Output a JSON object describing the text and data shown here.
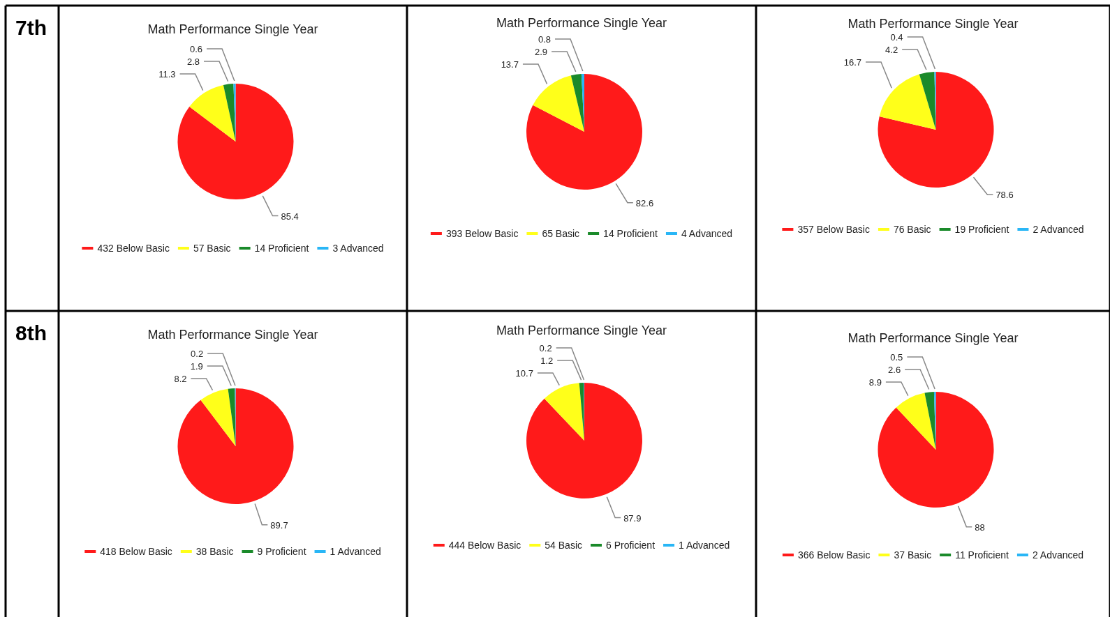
{
  "chart_data": [
    {
      "type": "pie",
      "title": "Math Performance Single Year",
      "annotations": [
        "7th"
      ],
      "categories": [
        "432 Below Basic",
        "57 Basic",
        "14 Proficient",
        "3 Advanced"
      ],
      "values": [
        85.4,
        11.3,
        2.8,
        0.6
      ],
      "colors": [
        "#ff1a1a",
        "#ffff1a",
        "#1a8a2a",
        "#29b6f6"
      ],
      "data_labels": true,
      "legend": "bottom"
    },
    {
      "type": "pie",
      "title": "Math Performance Single Year",
      "categories": [
        "393 Below Basic",
        "65 Basic",
        "14 Proficient",
        "4 Advanced"
      ],
      "values": [
        82.6,
        13.7,
        2.9,
        0.8
      ],
      "colors": [
        "#ff1a1a",
        "#ffff1a",
        "#1a8a2a",
        "#29b6f6"
      ],
      "data_labels": true,
      "legend": "bottom"
    },
    {
      "type": "pie",
      "title": "Math Performance Single Year",
      "categories": [
        "357 Below Basic",
        "76 Basic",
        "19 Proficient",
        "2 Advanced"
      ],
      "values": [
        78.6,
        16.7,
        4.2,
        0.4
      ],
      "colors": [
        "#ff1a1a",
        "#ffff1a",
        "#1a8a2a",
        "#29b6f6"
      ],
      "data_labels": true,
      "legend": "bottom"
    },
    {
      "type": "pie",
      "title": "Math Performance Single Year",
      "annotations": [
        "8th"
      ],
      "categories": [
        "418 Below Basic",
        "38 Basic",
        "9 Proficient",
        "1 Advanced"
      ],
      "values": [
        89.7,
        8.2,
        1.9,
        0.2
      ],
      "colors": [
        "#ff1a1a",
        "#ffff1a",
        "#1a8a2a",
        "#29b6f6"
      ],
      "data_labels": true,
      "legend": "bottom"
    },
    {
      "type": "pie",
      "title": "Math Performance Single Year",
      "categories": [
        "444 Below Basic",
        "54 Basic",
        "6 Proficient",
        "1 Advanced"
      ],
      "values": [
        87.9,
        10.7,
        1.2,
        0.2
      ],
      "colors": [
        "#ff1a1a",
        "#ffff1a",
        "#1a8a2a",
        "#29b6f6"
      ],
      "data_labels": true,
      "legend": "bottom"
    },
    {
      "type": "pie",
      "title": "Math Performance Single Year",
      "categories": [
        "366 Below Basic",
        "37 Basic",
        "11 Proficient",
        "2 Advanced"
      ],
      "values": [
        88,
        8.9,
        2.6,
        0.5
      ],
      "colors": [
        "#ff1a1a",
        "#ffff1a",
        "#1a8a2a",
        "#29b6f6"
      ],
      "data_labels": true,
      "legend": "bottom"
    }
  ]
}
